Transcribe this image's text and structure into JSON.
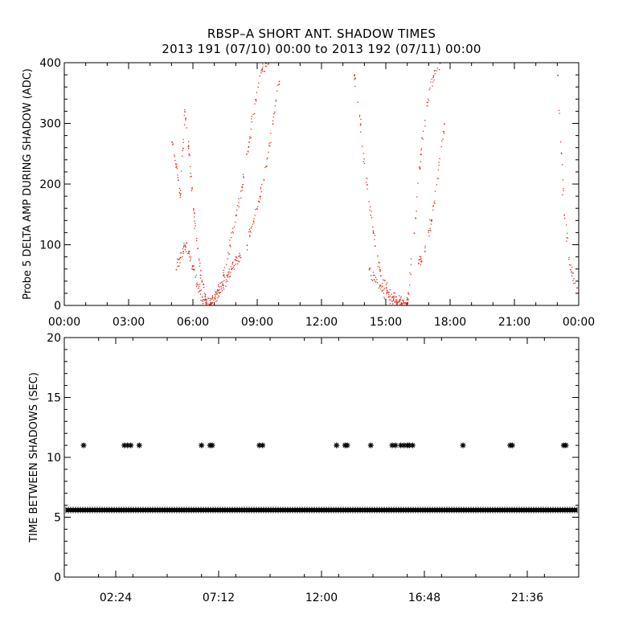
{
  "title": "RBSP–A SHORT ANT. SHADOW TIMES",
  "subtitle": "2013 191 (07/10) 00:00 to 2013 192 (07/11) 00:00",
  "colors": {
    "top_points": "#e0301a",
    "bottom_points": "#000000",
    "axes": "#000000"
  },
  "chart_data": [
    {
      "type": "scatter",
      "ylabel": "Probe 5 DELTA AMP DURING SHADOW (ADC)",
      "xlabel": "",
      "xlim_hours": [
        0,
        24
      ],
      "ylim": [
        0,
        400
      ],
      "x_ticks": [
        0,
        3,
        6,
        9,
        12,
        15,
        18,
        21,
        24
      ],
      "x_tick_labels": [
        "00:00",
        "03:00",
        "06:00",
        "09:00",
        "12:00",
        "15:00",
        "18:00",
        "21:00",
        "00:00"
      ],
      "y_ticks": [
        0,
        100,
        200,
        300,
        400
      ],
      "y_tick_labels": [
        "0",
        "100",
        "200",
        "300",
        "400"
      ],
      "marker_color": "#e0301a",
      "series": [
        {
          "x_hours": [
            5.0,
            5.2,
            5.4,
            5.6,
            5.8,
            6.0,
            6.2,
            6.4,
            6.6,
            6.8
          ],
          "values": [
            270,
            230,
            185,
            320,
            250,
            160,
            95,
            40,
            10,
            5
          ]
        },
        {
          "x_hours": [
            5.2,
            5.4,
            5.6,
            5.8,
            6.0,
            6.2,
            6.4,
            6.6
          ],
          "values": [
            60,
            80,
            100,
            90,
            60,
            35,
            15,
            5
          ]
        },
        {
          "x_hours": [
            6.8,
            7.0,
            7.2,
            7.4,
            7.6,
            7.8,
            8.0,
            8.2
          ],
          "values": [
            5,
            12,
            22,
            34,
            48,
            62,
            75,
            80
          ]
        },
        {
          "x_hours": [
            6.8,
            7.1,
            7.4,
            7.7,
            8.0,
            8.3,
            8.6,
            8.9,
            9.2,
            9.5
          ],
          "values": [
            5,
            20,
            50,
            100,
            150,
            200,
            270,
            340,
            390,
            400
          ]
        },
        {
          "x_hours": [
            8.5,
            8.8,
            9.1,
            9.4,
            9.7,
            10.0
          ],
          "values": [
            100,
            140,
            180,
            230,
            300,
            370
          ]
        },
        {
          "x_hours": [
            13.5,
            13.8,
            14.1,
            14.4,
            14.7,
            15.0,
            15.3,
            15.6,
            15.9
          ],
          "values": [
            380,
            300,
            200,
            120,
            60,
            30,
            15,
            8,
            5
          ]
        },
        {
          "x_hours": [
            14.2,
            14.5,
            14.8,
            15.1,
            15.4,
            15.7,
            16.0
          ],
          "values": [
            60,
            40,
            25,
            15,
            8,
            5,
            5
          ]
        },
        {
          "x_hours": [
            16.0,
            16.3,
            16.6,
            16.9,
            17.2,
            17.5
          ],
          "values": [
            10,
            120,
            250,
            330,
            380,
            400
          ]
        },
        {
          "x_hours": [
            16.5,
            16.8,
            17.1,
            17.4,
            17.7
          ],
          "values": [
            70,
            90,
            140,
            210,
            300
          ]
        },
        {
          "x_hours": [
            23.0,
            23.3,
            23.6,
            23.9
          ],
          "values": [
            380,
            150,
            60,
            30
          ]
        }
      ]
    },
    {
      "type": "scatter",
      "ylabel": "TIME BETWEEN SHADOWS (SEC)",
      "xlabel": "",
      "xlim_hours": [
        0,
        24
      ],
      "ylim": [
        0,
        20
      ],
      "x_ticks": [
        2.4,
        7.2,
        12.0,
        16.8,
        21.6
      ],
      "x_tick_labels": [
        "02:24",
        "07:12",
        "12:00",
        "16:48",
        "21:36"
      ],
      "y_ticks": [
        0,
        5,
        10,
        15,
        20
      ],
      "y_tick_labels": [
        "0",
        "5",
        "10",
        "15",
        "20"
      ],
      "marker": "asterisk",
      "marker_color": "#000000",
      "baseline_value": 5.6,
      "baseline_x_hours": [
        0,
        24
      ],
      "series": [
        {
          "name": "",
          "x_hours": [
            0.9,
            2.8,
            2.95,
            3.1,
            3.5,
            6.4,
            6.8,
            6.9,
            9.1,
            9.25,
            12.7,
            13.1,
            13.2,
            14.3,
            15.3,
            15.45,
            15.7,
            15.85,
            16.0,
            16.1,
            16.25,
            18.6,
            20.8,
            20.9,
            23.3,
            23.4
          ],
          "values": [
            11,
            11,
            11,
            11,
            11,
            11,
            11,
            11,
            11,
            11,
            11,
            11,
            11,
            11,
            11,
            11,
            11,
            11,
            11,
            11,
            11,
            11,
            11,
            11,
            11,
            11
          ]
        }
      ]
    }
  ]
}
